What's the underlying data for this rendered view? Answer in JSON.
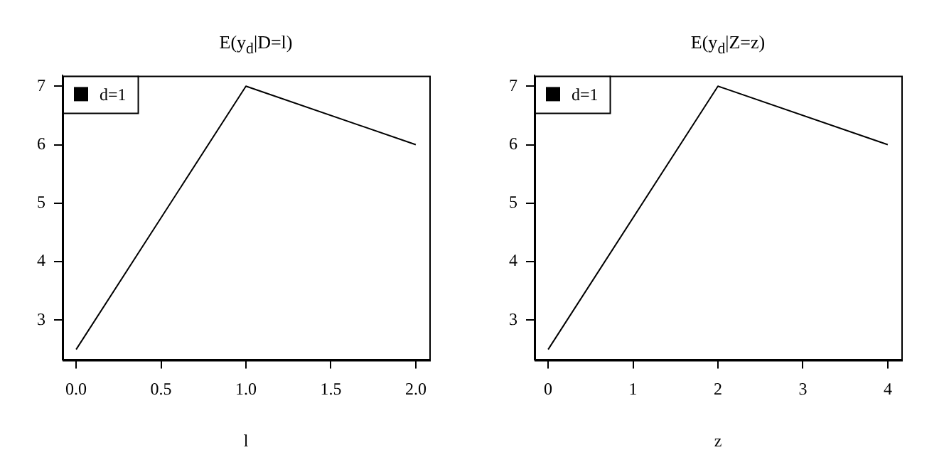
{
  "chart_data": [
    {
      "type": "line",
      "title": "E(y$_{d}$|D=l)",
      "xlabel": "l",
      "x": [
        0,
        1,
        2
      ],
      "series": [
        {
          "name": "d=1",
          "color": "#000000",
          "values": [
            2.5,
            7,
            6
          ]
        }
      ],
      "xlim": [
        -0.08,
        2.08
      ],
      "xticks": [
        {
          "value": 0,
          "label": "0.0"
        },
        {
          "value": 0.5,
          "label": "0.5"
        },
        {
          "value": 1,
          "label": "1.0"
        },
        {
          "value": 1.5,
          "label": "1.5"
        },
        {
          "value": 2,
          "label": "2.0"
        }
      ],
      "ylim": [
        2.32,
        7.18
      ],
      "yticks": [
        3,
        4,
        5,
        6,
        7
      ],
      "grid": false,
      "legend": "top left",
      "marker": "none",
      "line_style": "solid"
    },
    {
      "type": "line",
      "title": "E(y$_{d}$|Z=z)",
      "xlabel": "z",
      "x": [
        0,
        2,
        4
      ],
      "series": [
        {
          "name": "d=1",
          "color": "#000000",
          "values": [
            2.5,
            7,
            6
          ]
        }
      ],
      "xlim": [
        -0.16,
        4.16
      ],
      "xticks": [
        0,
        1,
        2,
        3,
        4
      ],
      "ylim": [
        2.32,
        7.18
      ],
      "yticks": [
        3,
        4,
        5,
        6,
        7
      ],
      "grid": false,
      "legend": "top left",
      "marker": "none",
      "line_style": "solid"
    }
  ]
}
